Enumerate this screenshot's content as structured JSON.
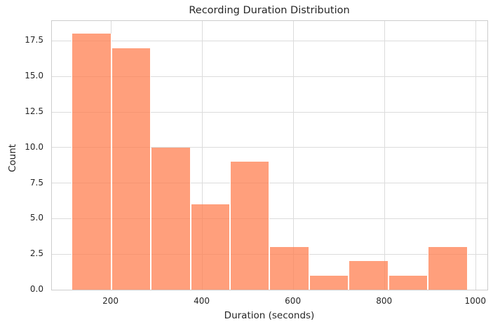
{
  "chart_data": {
    "type": "bar",
    "subtype": "histogram",
    "title": "Recording Duration Distribution",
    "xlabel": "Duration (seconds)",
    "ylabel": "Count",
    "bin_edges": [
      113,
      200,
      287,
      374,
      461,
      547,
      634,
      721,
      808,
      895,
      982
    ],
    "counts": [
      18,
      17,
      10,
      6,
      9,
      3,
      1,
      2,
      1,
      3
    ],
    "xticks": [
      200,
      400,
      600,
      800,
      1000
    ],
    "xtick_labels": [
      "200",
      "400",
      "600",
      "800",
      "1000"
    ],
    "yticks": [
      0.0,
      2.5,
      5.0,
      7.5,
      10.0,
      12.5,
      15.0,
      17.5
    ],
    "ytick_labels": [
      "0.0",
      "2.5",
      "5.0",
      "7.5",
      "10.0",
      "12.5",
      "15.0",
      "17.5"
    ],
    "xlim": [
      70,
      1025
    ],
    "ylim": [
      0,
      18.9
    ],
    "grid": true,
    "legend_position": "none",
    "colors": {
      "bar_fill_rgba": "rgba(255,127,80,0.75)",
      "bar_fill_flat": "#ff9f7c",
      "bar_edge": "#ffffff",
      "gridline": "#dcdcdc",
      "spine": "#cdcdcd",
      "text": "#262626",
      "background": "#ffffff"
    }
  }
}
